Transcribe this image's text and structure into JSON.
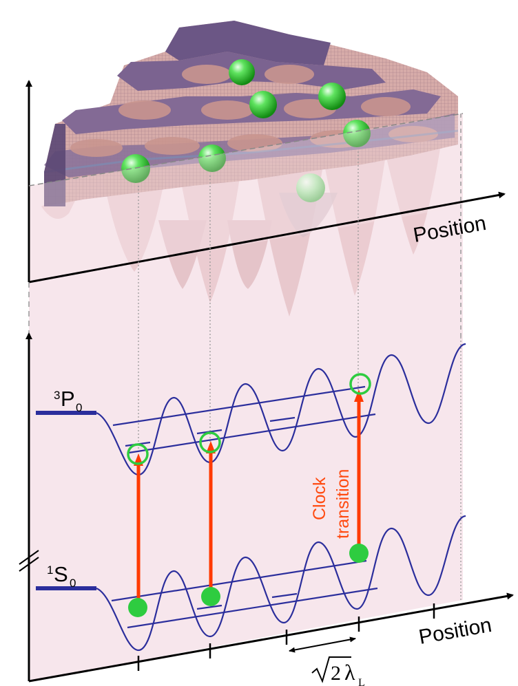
{
  "figure": {
    "top_axis_label": "Position",
    "bottom_axis_label": "Position",
    "upper_level": {
      "base": "P",
      "pre": "3",
      "sub": "0"
    },
    "lower_level": {
      "base": "S",
      "pre": "1",
      "sub": "0"
    },
    "clock_line1": "Clock",
    "clock_line2": "transition",
    "spacing_label": {
      "root": "2",
      "lambda": "λ",
      "sub": "L"
    },
    "colors": {
      "potential": "#2b2e9c",
      "arrow": "#ff3a00",
      "atom": "#2ecc40",
      "clock_text": "#ff4a10",
      "shade": "#f7e6ec",
      "lattice": "#b88a92",
      "lattice_dark": "#4e3f6a"
    }
  }
}
